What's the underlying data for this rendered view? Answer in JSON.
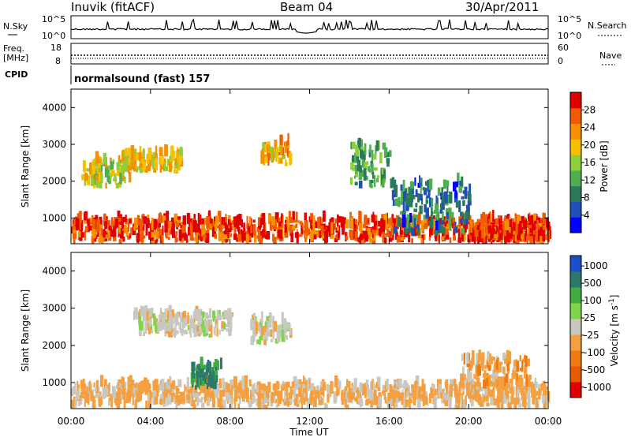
{
  "header": {
    "station": "Inuvik (fitACF)",
    "beam": "Beam 04",
    "date": "30/Apr/2011"
  },
  "noise_panel": {
    "left_label": "N.Sky",
    "right_label": "N.Search",
    "left_ticks": [
      "10^5",
      "10^0"
    ],
    "right_ticks": [
      "10^5",
      "10^0"
    ]
  },
  "freq_panel": {
    "label_line1": "Freq.",
    "label_line2": "[MHz]",
    "right_label": "Nave",
    "left_ticks": [
      "18",
      "8"
    ],
    "right_ticks": [
      "60",
      "0"
    ]
  },
  "cpid_panel": {
    "label": "CPID",
    "text": "normalsound (fast) 157"
  },
  "chart_data": [
    {
      "type": "heatmap",
      "ylabel": "Slant Range [km]",
      "ylim": [
        300,
        4500
      ],
      "yticks": [
        1000,
        2000,
        3000,
        4000
      ],
      "x_ticks": [
        "00:00",
        "04:00",
        "08:00",
        "12:00",
        "16:00",
        "20:00",
        "00:00"
      ],
      "colorbar": {
        "label": "Power [dB]",
        "range": [
          0,
          32
        ],
        "ticks": [
          "4",
          "8",
          "12",
          "16",
          "20",
          "24",
          "28"
        ],
        "colors": [
          "#0000ff",
          "#1f4fb8",
          "#2a7a5a",
          "#4fae4f",
          "#8ccf3a",
          "#f5c000",
          "#f59000",
          "#f05a00",
          "#e00000"
        ]
      },
      "features": [
        {
          "start": "00:00",
          "end": "24:00",
          "range_km": [
            300,
            900
          ],
          "power_db": 28
        },
        {
          "start": "00:30",
          "end": "03:00",
          "range_km": [
            1800,
            2500
          ],
          "power_db": 18
        },
        {
          "start": "02:30",
          "end": "05:30",
          "range_km": [
            2200,
            2700
          ],
          "power_db": 20
        },
        {
          "start": "09:30",
          "end": "11:00",
          "range_km": [
            2400,
            3000
          ],
          "power_db": 22
        },
        {
          "start": "14:00",
          "end": "16:00",
          "range_km": [
            1800,
            2900
          ],
          "power_db": 12
        },
        {
          "start": "16:00",
          "end": "20:00",
          "range_km": [
            500,
            1900
          ],
          "power_db": 8
        },
        {
          "start": "20:00",
          "end": "24:00",
          "range_km": [
            300,
            700
          ],
          "power_db": 28
        }
      ]
    },
    {
      "type": "heatmap",
      "ylabel": "Slant Range [km]",
      "ylim": [
        300,
        4500
      ],
      "yticks": [
        1000,
        2000,
        3000,
        4000
      ],
      "xlabel": "Time UT",
      "x_ticks": [
        "00:00",
        "04:00",
        "08:00",
        "12:00",
        "16:00",
        "20:00",
        "00:00"
      ],
      "colorbar": {
        "label": "Velocity [m s^-1]",
        "range": [
          -1250,
          1250
        ],
        "ticks": [
          "1000",
          "500",
          "100",
          "25",
          "-25",
          "-100",
          "-500",
          "-1000"
        ],
        "colors": [
          "#1a4fc8",
          "#2a7a6a",
          "#3fae3f",
          "#7fd44a",
          "#c8c8c0",
          "#f5a040",
          "#f07a10",
          "#e85a00",
          "#e00000"
        ]
      },
      "features": [
        {
          "start": "00:00",
          "end": "24:00",
          "range_km": [
            300,
            900
          ],
          "velocity_ms": -200
        },
        {
          "start": "03:00",
          "end": "08:00",
          "range_km": [
            2200,
            2800
          ],
          "velocity_ms": 0
        },
        {
          "start": "06:00",
          "end": "07:30",
          "range_km": [
            800,
            1400
          ],
          "velocity_ms": 800
        },
        {
          "start": "09:00",
          "end": "11:00",
          "range_km": [
            2000,
            2600
          ],
          "velocity_ms": 0
        },
        {
          "start": "19:30",
          "end": "23:00",
          "range_km": [
            800,
            1600
          ],
          "velocity_ms": -300
        }
      ]
    }
  ]
}
